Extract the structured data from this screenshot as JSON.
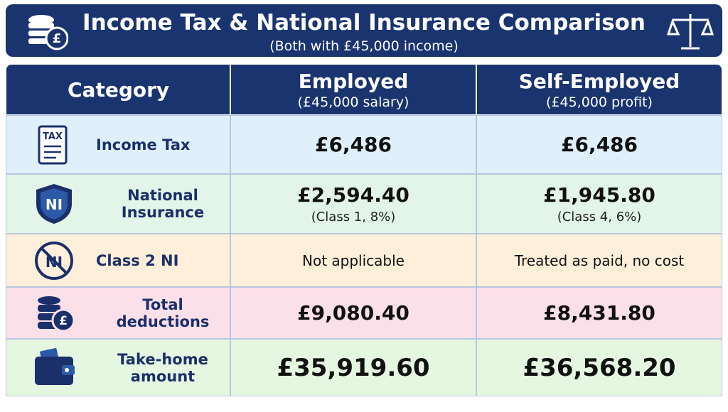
{
  "header": {
    "title": "Income Tax & National Insurance Comparison",
    "subtitle": "(Both with £45,000 income)",
    "icon_label": "£"
  },
  "table": {
    "columns": [
      {
        "title": "Category"
      },
      {
        "title": "Employed",
        "subtitle": "(£45,000 salary)"
      },
      {
        "title": "Self-Employed",
        "subtitle": "(£45,000 profit)"
      }
    ],
    "rows": [
      {
        "icon_label": "TAX",
        "category": "Income Tax",
        "employed": {
          "amount": "£6,486"
        },
        "self_employed": {
          "amount": "£6,486"
        }
      },
      {
        "icon_label": "NI",
        "category": "National Insurance",
        "employed": {
          "amount": "£2,594.40",
          "note": "(Class 1, 8%)"
        },
        "self_employed": {
          "amount": "£1,945.80",
          "note": "(Class 4, 6%)"
        }
      },
      {
        "icon_label": "NI",
        "category": "Class 2 NI",
        "employed": {
          "text": "Not applicable"
        },
        "self_employed": {
          "text": "Treated as paid, no cost"
        }
      },
      {
        "icon_label": "£",
        "category": "Total deductions",
        "employed": {
          "amount": "£9,080.40"
        },
        "self_employed": {
          "amount": "£8,431.80"
        }
      },
      {
        "category": "Take-home amount",
        "employed": {
          "amount": "£35,919.60"
        },
        "self_employed": {
          "amount": "£36,568.20"
        }
      }
    ]
  }
}
